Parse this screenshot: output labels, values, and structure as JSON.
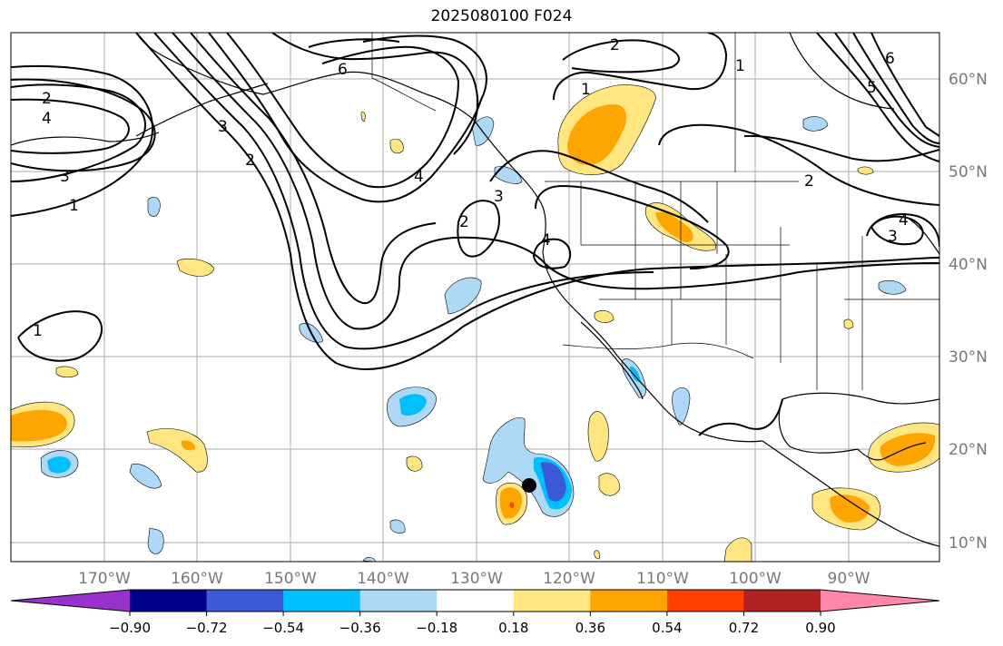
{
  "title": "2025080100 F024",
  "map": {
    "lat_ticks": [
      "60°N",
      "50°N",
      "40°N",
      "30°N",
      "20°N",
      "10°N"
    ],
    "lon_ticks": [
      "170°W",
      "160°W",
      "150°W",
      "140°W",
      "130°W",
      "120°W",
      "110°W",
      "100°W",
      "90°W"
    ],
    "contour_labels": [
      "2",
      "4",
      "3",
      "1",
      "1",
      "6",
      "4",
      "3",
      "2",
      "1",
      "2",
      "1",
      "4",
      "3",
      "2",
      "6",
      "5",
      "4",
      "3",
      "1",
      "2"
    ],
    "marker": "storm-center-dot"
  },
  "colorbar": {
    "ticks": [
      "−0.90",
      "−0.72",
      "−0.54",
      "−0.36",
      "−0.18",
      "0.18",
      "0.36",
      "0.54",
      "0.72",
      "0.90"
    ],
    "colors": [
      "#9932cc",
      "#00008b",
      "#3b5bd6",
      "#00bfff",
      "#add8f6",
      "#ffffff",
      "#ffe680",
      "#ffa500",
      "#ff4000",
      "#b22222",
      "#ff88aa"
    ]
  }
}
